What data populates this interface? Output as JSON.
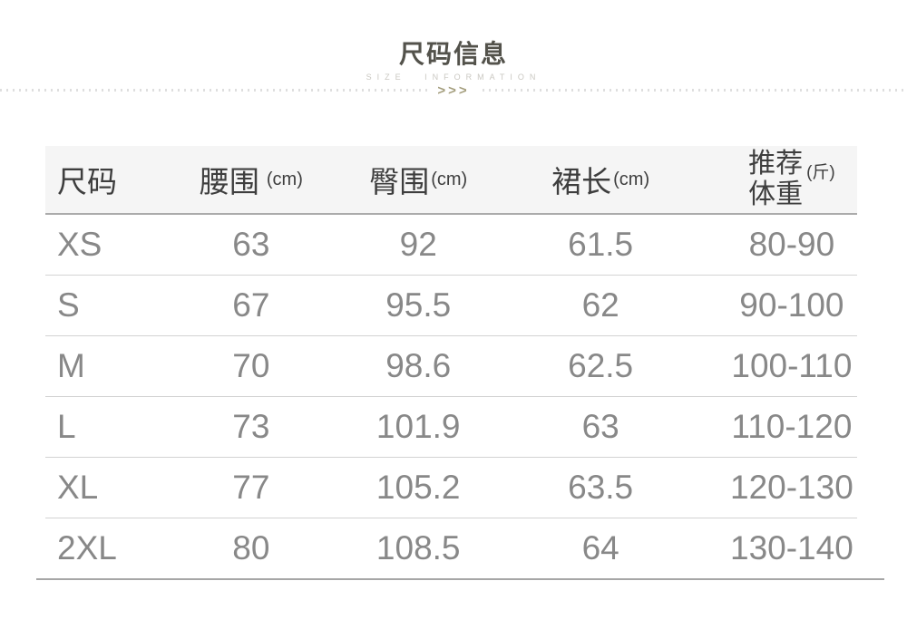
{
  "page": {
    "title": "尺码信息",
    "subtitle": "SIZE INFORMATION",
    "divider_chevrons": ">>>"
  },
  "colors": {
    "title_text": "#53524b",
    "subtitle_text": "#cac8c2",
    "chevron": "#a49e7d",
    "dotted_line": "#dedede",
    "header_bg": "#f5f5f5",
    "header_text": "#3e3e3e",
    "data_text": "#888888",
    "header_border": "#ababab",
    "row_border": "#d3d3d3",
    "bottom_border": "#a6a6a6"
  },
  "table": {
    "headers": [
      {
        "label": "尺码",
        "unit": ""
      },
      {
        "label": "腰围",
        "unit": "(cm)"
      },
      {
        "label": "臀围",
        "unit": "(cm)"
      },
      {
        "label": "裙长",
        "unit": "(cm)"
      },
      {
        "line1": "推荐",
        "line2": "体重",
        "unit": "(斤)"
      }
    ],
    "rows": [
      [
        "XS",
        "63",
        "92",
        "61.5",
        "80-90"
      ],
      [
        "S",
        "67",
        "95.5",
        "62",
        "90-100"
      ],
      [
        "M",
        "70",
        "98.6",
        "62.5",
        "100-110"
      ],
      [
        "L",
        "73",
        "101.9",
        "63",
        "110-120"
      ],
      [
        "XL",
        "77",
        "105.2",
        "63.5",
        "120-130"
      ],
      [
        "2XL",
        "80",
        "108.5",
        "64",
        "130-140"
      ]
    ]
  },
  "chart_data": {
    "type": "table",
    "title": "尺码信息",
    "columns": [
      "尺码",
      "腰围(cm)",
      "臀围(cm)",
      "裙长(cm)",
      "推荐体重(斤)"
    ],
    "rows": [
      {
        "size": "XS",
        "waist_cm": 63,
        "hip_cm": 92,
        "skirt_length_cm": 61.5,
        "recommended_weight_jin": "80-90"
      },
      {
        "size": "S",
        "waist_cm": 67,
        "hip_cm": 95.5,
        "skirt_length_cm": 62,
        "recommended_weight_jin": "90-100"
      },
      {
        "size": "M",
        "waist_cm": 70,
        "hip_cm": 98.6,
        "skirt_length_cm": 62.5,
        "recommended_weight_jin": "100-110"
      },
      {
        "size": "L",
        "waist_cm": 73,
        "hip_cm": 101.9,
        "skirt_length_cm": 63,
        "recommended_weight_jin": "110-120"
      },
      {
        "size": "XL",
        "waist_cm": 77,
        "hip_cm": 105.2,
        "skirt_length_cm": 63.5,
        "recommended_weight_jin": "120-130"
      },
      {
        "size": "2XL",
        "waist_cm": 80,
        "hip_cm": 108.5,
        "skirt_length_cm": 64,
        "recommended_weight_jin": "130-140"
      }
    ]
  }
}
